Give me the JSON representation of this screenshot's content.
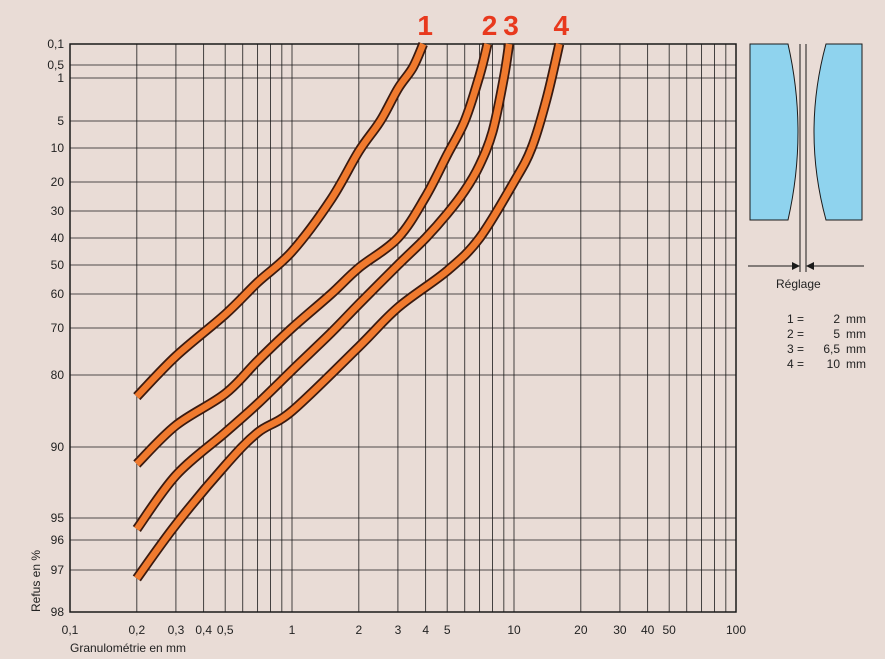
{
  "chart_data": {
    "type": "line",
    "xscale": "log",
    "xlim": [
      0.1,
      100
    ],
    "xlabel": "Granulométrie en mm",
    "ylabel": "Refus en %",
    "x_ticks": [
      {
        "v": 0.1,
        "label": "0,1"
      },
      {
        "v": 0.2,
        "label": "0,2"
      },
      {
        "v": 0.3,
        "label": "0,3"
      },
      {
        "v": 0.4,
        "label": "0,4"
      },
      {
        "v": 0.5,
        "label": "0,5"
      },
      {
        "v": 1,
        "label": "1"
      },
      {
        "v": 2,
        "label": "2"
      },
      {
        "v": 3,
        "label": "3"
      },
      {
        "v": 4,
        "label": "4"
      },
      {
        "v": 5,
        "label": "5"
      },
      {
        "v": 10,
        "label": "10"
      },
      {
        "v": 20,
        "label": "20"
      },
      {
        "v": 30,
        "label": "30"
      },
      {
        "v": 40,
        "label": "40"
      },
      {
        "v": 50,
        "label": "50"
      },
      {
        "v": 100,
        "label": "100"
      }
    ],
    "x_minor": [
      0.6,
      0.7,
      0.8,
      0.9,
      6,
      7,
      8,
      9,
      60,
      70,
      80,
      90
    ],
    "y_ticks": [
      {
        "v": 0.1,
        "label": "0,1"
      },
      {
        "v": 0.5,
        "label": "0,5"
      },
      {
        "v": 1,
        "label": "1"
      },
      {
        "v": 5,
        "label": "5"
      },
      {
        "v": 10,
        "label": "10"
      },
      {
        "v": 20,
        "label": "20"
      },
      {
        "v": 30,
        "label": "30"
      },
      {
        "v": 40,
        "label": "40"
      },
      {
        "v": 50,
        "label": "50"
      },
      {
        "v": 60,
        "label": "60"
      },
      {
        "v": 70,
        "label": "70"
      },
      {
        "v": 80,
        "label": "80"
      },
      {
        "v": 90,
        "label": "90"
      },
      {
        "v": 95,
        "label": "95"
      },
      {
        "v": 96,
        "label": "96"
      },
      {
        "v": 97,
        "label": "97"
      },
      {
        "v": 98,
        "label": "98"
      }
    ],
    "series": [
      {
        "name": "1",
        "x": [
          0.2,
          0.3,
          0.5,
          0.7,
          1,
          1.5,
          2,
          2.5,
          3,
          3.5,
          3.9
        ],
        "y": [
          83,
          76,
          66,
          56,
          45,
          26,
          11,
          5,
          2,
          0.6,
          0.1
        ]
      },
      {
        "name": "2",
        "x": [
          0.2,
          0.3,
          0.5,
          0.7,
          1,
          1.5,
          2,
          3,
          4,
          5,
          6,
          7,
          7.6
        ],
        "y": [
          91.2,
          87,
          82.6,
          77,
          70,
          60,
          51,
          40,
          25,
          12,
          5,
          0.9,
          0.1
        ]
      },
      {
        "name": "3",
        "x": [
          0.2,
          0.3,
          0.5,
          0.7,
          1,
          1.5,
          2,
          3,
          4,
          5,
          6,
          7,
          8,
          9,
          9.5
        ],
        "y": [
          95.5,
          92,
          88,
          84,
          79,
          71,
          63,
          50,
          40,
          31,
          23,
          15,
          7,
          1,
          0.1
        ]
      },
      {
        "name": "4",
        "x": [
          0.2,
          0.3,
          0.5,
          0.7,
          1,
          2,
          3,
          5,
          7,
          10,
          12,
          14,
          16
        ],
        "y": [
          97.2,
          95.3,
          91.3,
          88,
          85,
          74,
          64,
          52,
          40,
          20,
          10,
          3,
          0.1
        ]
      }
    ],
    "curve_color": "#f07a2e",
    "curve_outline": "#3a1a10"
  },
  "legend": {
    "title": "Réglage",
    "items": [
      {
        "key": "1 =",
        "value": "2",
        "unit": "mm"
      },
      {
        "key": "2 =",
        "value": "5",
        "unit": "mm"
      },
      {
        "key": "3 =",
        "value": "6,5",
        "unit": "mm"
      },
      {
        "key": "4 =",
        "value": "10",
        "unit": "mm"
      }
    ]
  },
  "colors": {
    "background": "#e9dcd6",
    "grid": "#1a1a1a",
    "roller": "#8fd3ee",
    "label_red": "#e8391e"
  }
}
